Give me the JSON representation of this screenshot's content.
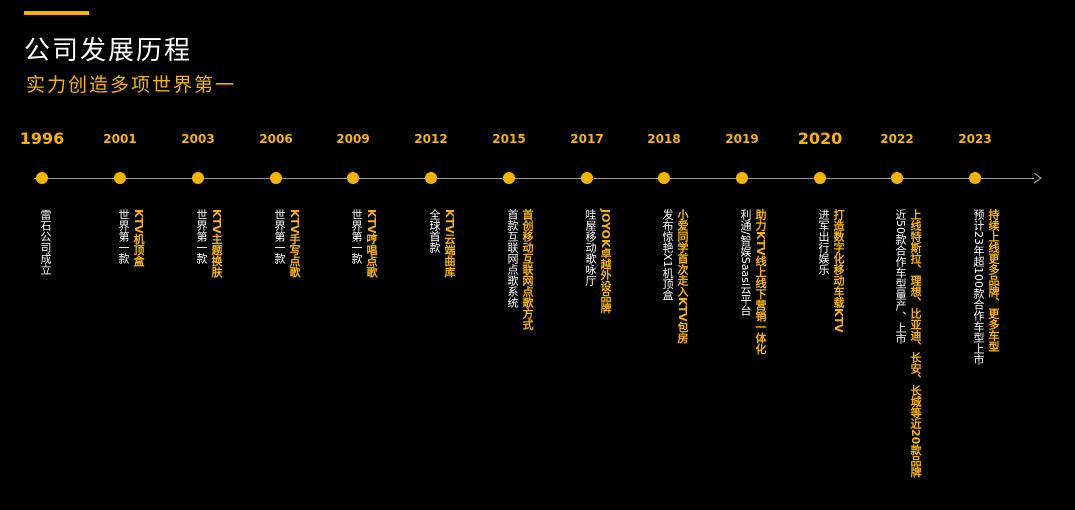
{
  "header": {
    "title": "公司发展历程",
    "subtitle": "实力创造多项世界第一",
    "accent_color": "#f5b400"
  },
  "timeline": {
    "events": [
      {
        "year": "1996",
        "big": true,
        "lines": [
          {
            "text": "雷石公司成立",
            "hl": false
          }
        ]
      },
      {
        "year": "2001",
        "big": false,
        "lines": [
          {
            "text": "KTV机顶盒",
            "hl": true
          },
          {
            "text": "世界第一款",
            "hl": false
          }
        ]
      },
      {
        "year": "2003",
        "big": false,
        "lines": [
          {
            "text": "KTV主题换肤",
            "hl": true
          },
          {
            "text": "世界第一款",
            "hl": false
          }
        ]
      },
      {
        "year": "2006",
        "big": false,
        "lines": [
          {
            "text": "KTV手写点歌",
            "hl": true
          },
          {
            "text": "世界第一款",
            "hl": false
          }
        ]
      },
      {
        "year": "2009",
        "big": false,
        "lines": [
          {
            "text": "KTV哼唱点歌",
            "hl": true
          },
          {
            "text": "世界第一款",
            "hl": false
          }
        ]
      },
      {
        "year": "2012",
        "big": false,
        "lines": [
          {
            "text": "KTV云端曲库",
            "hl": true
          },
          {
            "text": "全球首款",
            "hl": false
          }
        ]
      },
      {
        "year": "2015",
        "big": false,
        "lines": [
          {
            "text": "首创移动互联网点歌方式",
            "hl": true
          },
          {
            "text": "首款互联网点歌系统",
            "hl": false
          }
        ]
      },
      {
        "year": "2017",
        "big": false,
        "lines": [
          {
            "text": "JOYOK卓越外设品牌",
            "hl": true
          },
          {
            "text": "哇屋移动歌咏厅",
            "hl": false
          }
        ]
      },
      {
        "year": "2018",
        "big": false,
        "lines": [
          {
            "text": "小爱同学首次走入KTV包房",
            "hl": true
          },
          {
            "text": "发布惊艳X1机顶盒",
            "hl": false
          }
        ]
      },
      {
        "year": "2019",
        "big": false,
        "lines": [
          {
            "text": "助力KTV线上线下营销一体化",
            "hl": true
          },
          {
            "text": "利通/智娱Saas云平台",
            "hl": false
          }
        ]
      },
      {
        "year": "2020",
        "big": true,
        "lines": [
          {
            "text": "打造数字化移动车载KTV",
            "hl": true
          },
          {
            "text": "进军出行娱乐",
            "hl": false
          }
        ]
      },
      {
        "year": "2022",
        "big": false,
        "lines": [
          {
            "text": "上线特斯拉、理想、比亚迪、长安、长城等近20款品牌",
            "hl": true
          },
          {
            "text": "近50款合作车型量产、上市",
            "hl": false
          }
        ]
      },
      {
        "year": "2023",
        "big": false,
        "lines": [
          {
            "text": "持续上线更多品牌、更多车型",
            "hl": true
          },
          {
            "text": "预计23年超100款合作车型上市",
            "hl": false
          }
        ]
      }
    ]
  }
}
